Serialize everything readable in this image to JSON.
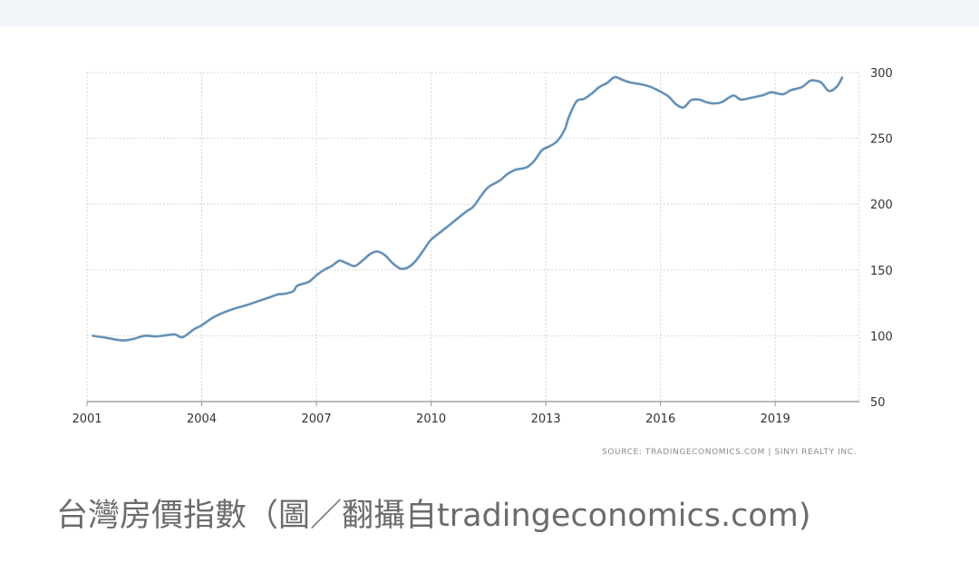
{
  "chart_data": {
    "type": "line",
    "series": [
      {
        "values": [
          [
            2001.15,
            100
          ],
          [
            2001.5,
            98.5
          ],
          [
            2001.9,
            96.5
          ],
          [
            2002.2,
            97.5
          ],
          [
            2002.5,
            100
          ],
          [
            2002.8,
            99.5
          ],
          [
            2003.1,
            100.5
          ],
          [
            2003.3,
            101
          ],
          [
            2003.5,
            99
          ],
          [
            2003.8,
            105
          ],
          [
            2004.0,
            108
          ],
          [
            2004.3,
            114
          ],
          [
            2004.6,
            118
          ],
          [
            2004.9,
            121
          ],
          [
            2005.2,
            123.5
          ],
          [
            2005.5,
            126.5
          ],
          [
            2005.8,
            129.5
          ],
          [
            2006.0,
            131.5
          ],
          [
            2006.2,
            132
          ],
          [
            2006.4,
            134
          ],
          [
            2006.5,
            138
          ],
          [
            2006.8,
            141
          ],
          [
            2007.0,
            146
          ],
          [
            2007.2,
            150
          ],
          [
            2007.4,
            153
          ],
          [
            2007.6,
            157
          ],
          [
            2007.8,
            155
          ],
          [
            2008.0,
            153
          ],
          [
            2008.2,
            157
          ],
          [
            2008.4,
            162
          ],
          [
            2008.6,
            164
          ],
          [
            2008.8,
            161
          ],
          [
            2009.0,
            155
          ],
          [
            2009.2,
            151
          ],
          [
            2009.4,
            152
          ],
          [
            2009.6,
            157
          ],
          [
            2009.8,
            165
          ],
          [
            2010.0,
            173
          ],
          [
            2010.3,
            180
          ],
          [
            2010.6,
            187
          ],
          [
            2010.9,
            194
          ],
          [
            2011.1,
            198
          ],
          [
            2011.3,
            206
          ],
          [
            2011.5,
            213
          ],
          [
            2011.8,
            218
          ],
          [
            2012.0,
            223
          ],
          [
            2012.2,
            226
          ],
          [
            2012.5,
            228
          ],
          [
            2012.7,
            233
          ],
          [
            2012.9,
            241
          ],
          [
            2013.1,
            244
          ],
          [
            2013.3,
            248
          ],
          [
            2013.5,
            257
          ],
          [
            2013.6,
            266
          ],
          [
            2013.8,
            278
          ],
          [
            2014.0,
            280
          ],
          [
            2014.2,
            284
          ],
          [
            2014.4,
            289
          ],
          [
            2014.6,
            292
          ],
          [
            2014.8,
            296.5
          ],
          [
            2015.0,
            294.5
          ],
          [
            2015.2,
            292.5
          ],
          [
            2015.5,
            291
          ],
          [
            2015.7,
            289.5
          ],
          [
            2015.9,
            287
          ],
          [
            2016.2,
            282
          ],
          [
            2016.4,
            276
          ],
          [
            2016.6,
            273.5
          ],
          [
            2016.8,
            279
          ],
          [
            2017.0,
            279.5
          ],
          [
            2017.2,
            277.5
          ],
          [
            2017.4,
            276.5
          ],
          [
            2017.6,
            277.5
          ],
          [
            2017.9,
            282.5
          ],
          [
            2018.1,
            279.5
          ],
          [
            2018.4,
            281
          ],
          [
            2018.7,
            283
          ],
          [
            2018.9,
            285
          ],
          [
            2019.2,
            283.5
          ],
          [
            2019.4,
            286.5
          ],
          [
            2019.7,
            289
          ],
          [
            2019.9,
            293.5
          ],
          [
            2020.0,
            294
          ],
          [
            2020.2,
            292.5
          ],
          [
            2020.4,
            286
          ],
          [
            2020.6,
            289
          ],
          [
            2020.75,
            296
          ]
        ]
      }
    ],
    "x_ticks": [
      2001,
      2004,
      2007,
      2010,
      2013,
      2016,
      2019
    ],
    "y_ticks": [
      50,
      100,
      150,
      200,
      250,
      300
    ],
    "xlim": [
      2001,
      2021.2
    ],
    "ylim": [
      50,
      300
    ],
    "grid": true,
    "line_color": "#6591b6"
  },
  "source_note": "SOURCE: TRADINGECONOMICS.COM  |  SINYI REALTY INC.",
  "caption": "台灣房價指數（圖／翻攝自tradingeconomics.com)"
}
